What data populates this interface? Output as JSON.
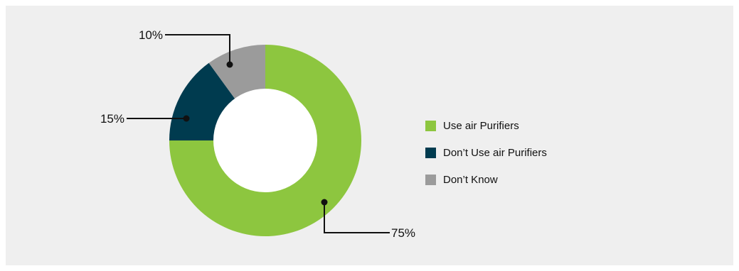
{
  "chart_data": {
    "type": "pie",
    "variant": "donut",
    "categories": [
      "Use air Purifiers",
      "Don’t Use air Purifiers",
      "Don’t Know"
    ],
    "values": [
      75,
      15,
      10
    ],
    "value_labels": [
      "75%",
      "15%",
      "10%"
    ],
    "colors": [
      "#8dc63f",
      "#003b4f",
      "#9b9b9b"
    ],
    "legend_placement": "right",
    "title": "",
    "background": "#efefef"
  }
}
